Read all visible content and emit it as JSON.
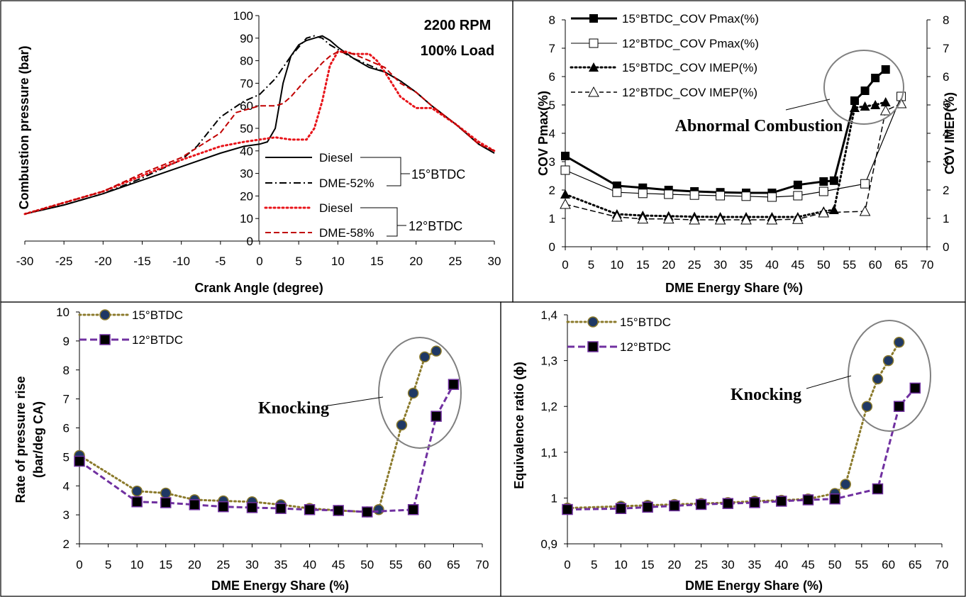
{
  "chart_data": [
    {
      "id": "pressure",
      "type": "line",
      "title": "",
      "xlabel": "Crank Angle (degree)",
      "ylabel": "Combustion pressure (bar)",
      "xlim": [
        -30,
        30
      ],
      "ylim": [
        0,
        100
      ],
      "xticks": [
        -30,
        -25,
        -20,
        -15,
        -10,
        -5,
        0,
        5,
        10,
        15,
        20,
        25,
        30
      ],
      "yticks": [
        0,
        10,
        20,
        30,
        40,
        50,
        60,
        70,
        80,
        90,
        100
      ],
      "grid": false,
      "annotations": [
        "2200 RPM",
        "100% Load"
      ],
      "group_labels": [
        "15°BTDC",
        "12°BTDC"
      ],
      "series": [
        {
          "name": "Diesel",
          "style": "solid",
          "color": "#000000",
          "x": [
            -30,
            -25,
            -20,
            -15,
            -10,
            -5,
            -2,
            0,
            1,
            2,
            3,
            4,
            5,
            6,
            7,
            8,
            9,
            10,
            12,
            14,
            16,
            18,
            20,
            22,
            25,
            28,
            30
          ],
          "y": [
            12,
            16,
            21,
            27,
            33,
            39,
            42,
            43,
            44,
            50,
            70,
            82,
            87,
            89,
            90,
            91,
            89,
            86,
            81,
            77,
            75,
            71,
            66,
            60,
            52,
            43,
            39
          ]
        },
        {
          "name": "DME-52%",
          "style": "dashdot",
          "color": "#000000",
          "x": [
            -30,
            -25,
            -20,
            -15,
            -10,
            -8,
            -5,
            -2,
            0,
            2,
            4,
            6,
            7,
            8,
            9,
            10,
            12,
            14,
            16,
            18,
            20,
            22,
            25,
            28,
            30
          ],
          "y": [
            12,
            16,
            21,
            28,
            36,
            42,
            55,
            62,
            65,
            72,
            82,
            90,
            91,
            90,
            87,
            85,
            81,
            78,
            75,
            71,
            66,
            60,
            52,
            43,
            39
          ]
        },
        {
          "name": "Diesel",
          "style": "dotted",
          "color": "#e8141a",
          "x": [
            -30,
            -25,
            -20,
            -15,
            -10,
            -5,
            -2,
            0,
            2,
            4,
            6,
            7,
            8,
            9,
            10,
            11,
            12,
            13,
            14,
            15,
            16,
            18,
            20,
            22,
            25,
            28,
            30
          ],
          "y": [
            12,
            17,
            22,
            29,
            36,
            42,
            44,
            45,
            46,
            45,
            45,
            50,
            62,
            78,
            84,
            84,
            83,
            83,
            83,
            80,
            75,
            64,
            59,
            59,
            52,
            44,
            40
          ]
        },
        {
          "name": "DME-58%",
          "style": "dashed",
          "color": "#c00000",
          "x": [
            -30,
            -25,
            -20,
            -15,
            -10,
            -5,
            -3,
            -1,
            0,
            1,
            2,
            3,
            4,
            5,
            6,
            7,
            8,
            9,
            10,
            12,
            14,
            16,
            18,
            20,
            22,
            25,
            28,
            30
          ],
          "y": [
            12,
            17,
            22,
            30,
            37,
            48,
            57,
            59,
            60,
            60,
            60,
            61,
            64,
            68,
            72,
            75,
            79,
            82,
            84,
            83,
            80,
            77,
            70,
            66,
            60,
            52,
            43,
            40
          ]
        }
      ]
    },
    {
      "id": "cov",
      "type": "line",
      "title": "",
      "xlabel": "DME Energy Share (%)",
      "ylabel": "COV Pmax(%)",
      "y2label": "COV IMEP(%)",
      "xlim": [
        0,
        70
      ],
      "ylim": [
        0,
        8
      ],
      "y2lim": [
        0,
        8
      ],
      "xticks": [
        0,
        5,
        10,
        15,
        20,
        25,
        30,
        35,
        40,
        45,
        50,
        55,
        60,
        65,
        70
      ],
      "yticks": [
        0,
        1,
        2,
        3,
        4,
        5,
        6,
        7,
        8
      ],
      "grid": false,
      "legend_placement": "top-left",
      "annotation": "Abnormal Combustion",
      "series": [
        {
          "name": "15°BTDC_COV Pmax(%)",
          "style": "solid",
          "marker": "filled-square",
          "x": [
            0,
            10,
            15,
            20,
            25,
            30,
            35,
            40,
            45,
            50,
            52,
            56,
            58,
            60,
            62
          ],
          "y": [
            3.2,
            2.15,
            2.08,
            2.0,
            1.95,
            1.92,
            1.9,
            1.9,
            2.18,
            2.3,
            2.33,
            5.15,
            5.5,
            5.95,
            6.25
          ]
        },
        {
          "name": "12°BTDC_COV Pmax(%)",
          "style": "solid-thin",
          "marker": "open-square",
          "x": [
            0,
            10,
            15,
            20,
            25,
            30,
            35,
            40,
            45,
            50,
            58,
            65
          ],
          "y": [
            2.7,
            1.92,
            1.88,
            1.85,
            1.82,
            1.8,
            1.78,
            1.75,
            1.8,
            1.95,
            2.22,
            5.3
          ]
        },
        {
          "name": "15°BTDC_COV IMEP(%)",
          "style": "dotted",
          "marker": "filled-triangle",
          "x": [
            0,
            10,
            15,
            20,
            25,
            30,
            35,
            40,
            45,
            50,
            52,
            56,
            58,
            60,
            62
          ],
          "y": [
            1.85,
            1.15,
            1.1,
            1.08,
            1.06,
            1.05,
            1.05,
            1.05,
            1.05,
            1.25,
            1.3,
            4.9,
            4.95,
            5.0,
            5.1
          ]
        },
        {
          "name": "12°BTDC_COV IMEP(%)",
          "style": "dashed",
          "marker": "open-triangle",
          "x": [
            0,
            10,
            15,
            20,
            25,
            30,
            35,
            40,
            45,
            50,
            58,
            62,
            65
          ],
          "y": [
            1.5,
            1.05,
            0.98,
            0.98,
            0.95,
            0.95,
            0.95,
            0.95,
            0.97,
            1.2,
            1.25,
            4.8,
            5.05
          ]
        }
      ]
    },
    {
      "id": "rpr",
      "type": "line",
      "title": "",
      "xlabel": "DME Energy Share (%)",
      "ylabel": "Rate of pressure rise (bar/deg CA)",
      "ylabel_lines": [
        "Rate of pressure rise",
        "(bar/deg CA)"
      ],
      "xlim": [
        0,
        70
      ],
      "ylim": [
        2,
        10
      ],
      "xticks": [
        0,
        5,
        10,
        15,
        20,
        25,
        30,
        35,
        40,
        45,
        50,
        55,
        60,
        65,
        70
      ],
      "yticks": [
        2,
        3,
        4,
        5,
        6,
        7,
        8,
        9,
        10
      ],
      "grid": false,
      "legend_placement": "top-left",
      "annotation": "Knocking",
      "series": [
        {
          "name": "15°BTDC",
          "style": "dotted",
          "marker": "circle",
          "x": [
            0,
            10,
            15,
            20,
            25,
            30,
            35,
            40,
            45,
            50,
            52,
            56,
            58,
            60,
            62
          ],
          "y": [
            5.05,
            3.82,
            3.75,
            3.52,
            3.48,
            3.45,
            3.35,
            3.22,
            3.15,
            3.1,
            3.18,
            6.1,
            7.2,
            8.45,
            8.65
          ]
        },
        {
          "name": "12°BTDC",
          "style": "dashed",
          "marker": "square",
          "x": [
            0,
            10,
            15,
            20,
            25,
            30,
            35,
            40,
            45,
            50,
            58,
            62,
            65
          ],
          "y": [
            4.85,
            3.45,
            3.42,
            3.35,
            3.28,
            3.25,
            3.22,
            3.18,
            3.15,
            3.1,
            3.18,
            6.4,
            7.5
          ]
        }
      ]
    },
    {
      "id": "equiv",
      "type": "line",
      "title": "",
      "xlabel": "DME Energy Share (%)",
      "ylabel": "Equivalence ratio (ϕ)",
      "xlim": [
        0,
        70
      ],
      "ylim": [
        0.9,
        1.4
      ],
      "xticks": [
        0,
        5,
        10,
        15,
        20,
        25,
        30,
        35,
        40,
        45,
        50,
        55,
        60,
        65,
        70
      ],
      "yticks": [
        0.9,
        1.0,
        1.1,
        1.2,
        1.3,
        1.4
      ],
      "ytick_labels": [
        "0,9",
        "1",
        "1,1",
        "1,2",
        "1,3",
        "1,4"
      ],
      "grid": false,
      "legend_placement": "top-left",
      "annotation": "Knocking",
      "series": [
        {
          "name": "15°BTDC",
          "style": "dotted",
          "marker": "circle",
          "x": [
            0,
            10,
            15,
            20,
            25,
            30,
            35,
            40,
            45,
            50,
            52,
            56,
            58,
            60,
            62
          ],
          "y": [
            0.978,
            0.982,
            0.984,
            0.986,
            0.988,
            0.99,
            0.993,
            0.995,
            0.998,
            1.01,
            1.03,
            1.2,
            1.26,
            1.3,
            1.34
          ]
        },
        {
          "name": "12°BTDC",
          "style": "dashed",
          "marker": "square",
          "x": [
            0,
            10,
            15,
            20,
            25,
            30,
            35,
            40,
            45,
            50,
            58,
            62,
            65
          ],
          "y": [
            0.975,
            0.977,
            0.98,
            0.983,
            0.986,
            0.988,
            0.99,
            0.993,
            0.996,
            0.998,
            1.02,
            1.2,
            1.24
          ]
        }
      ]
    }
  ]
}
